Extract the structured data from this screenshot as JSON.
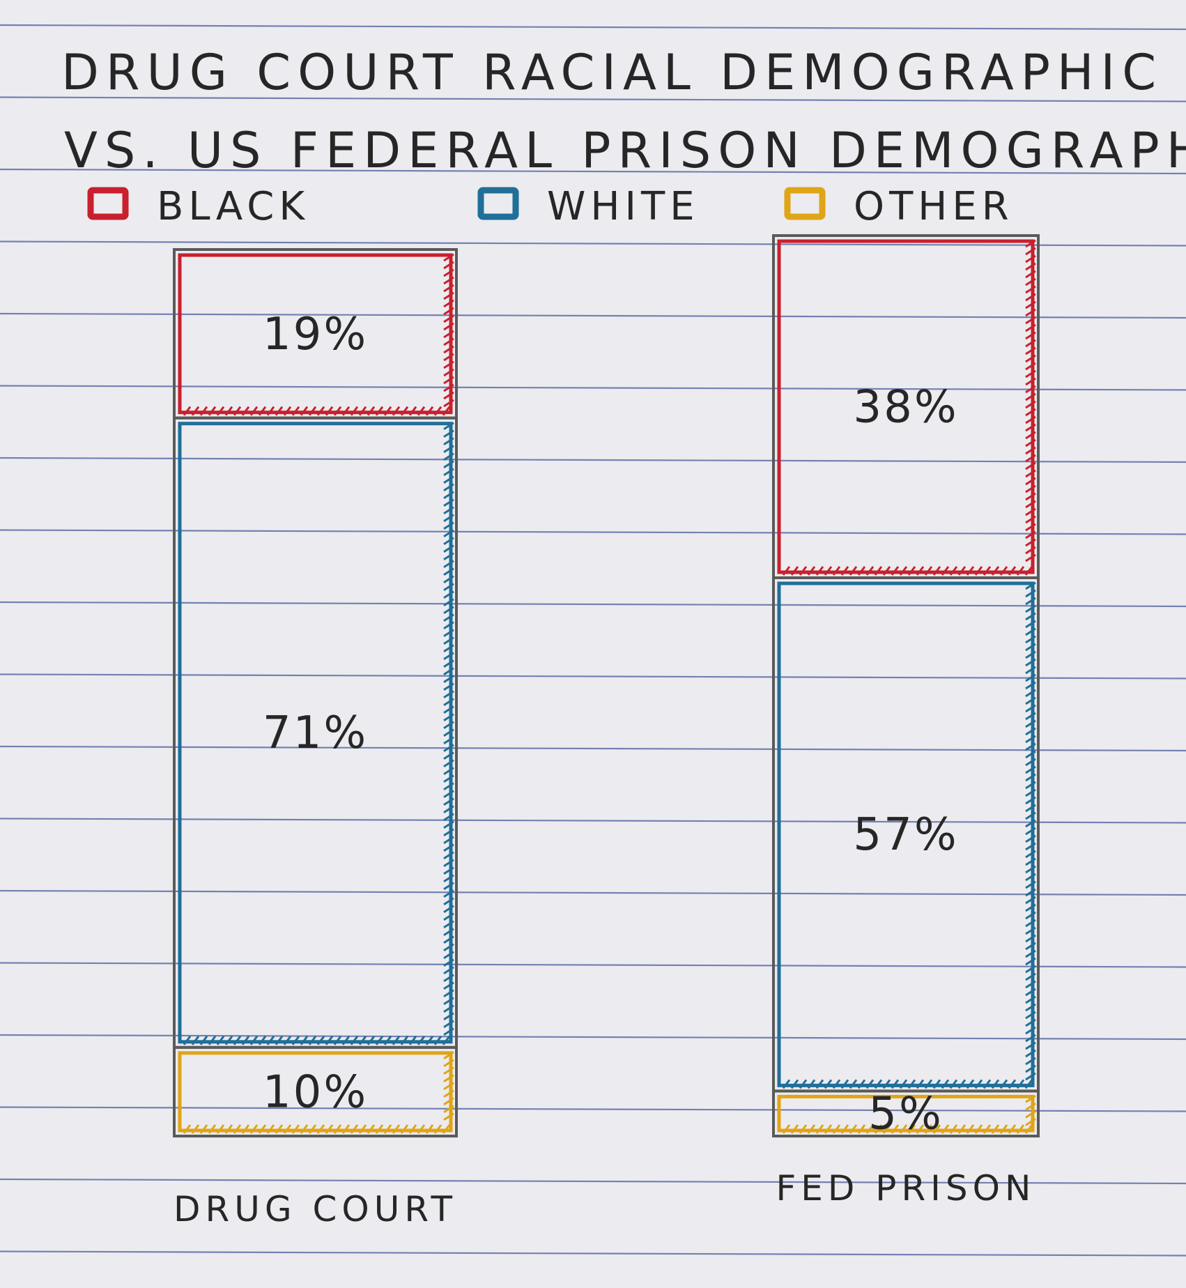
{
  "chart_data": {
    "type": "bar",
    "stacked": true,
    "title_lines": [
      "DRUG COURT RACIAL DEMOGRAPHIC",
      "VS. US FEDERAL PRISON DEMOGRAPHIC"
    ],
    "categories": [
      "DRUG COURT",
      "FED PRISON"
    ],
    "series": [
      {
        "name": "BLACK",
        "values": [
          19,
          38
        ],
        "labels": [
          "19%",
          "38%"
        ],
        "color": "#c8202e"
      },
      {
        "name": "WHITE",
        "values": [
          71,
          57
        ],
        "labels": [
          "71%",
          "57%"
        ],
        "color": "#1f6f99"
      },
      {
        "name": "OTHER",
        "values": [
          10,
          5
        ],
        "labels": [
          "10%",
          "5%"
        ],
        "color": "#e0a516"
      }
    ],
    "ylim": [
      0,
      100
    ],
    "legend_position": "top",
    "grid": false,
    "style": "hand-drawn on ruled notebook paper"
  },
  "paper": {
    "background": "#ecebef",
    "rule_color": "#5f6fa8",
    "outline_color": "#5a5a5a"
  }
}
